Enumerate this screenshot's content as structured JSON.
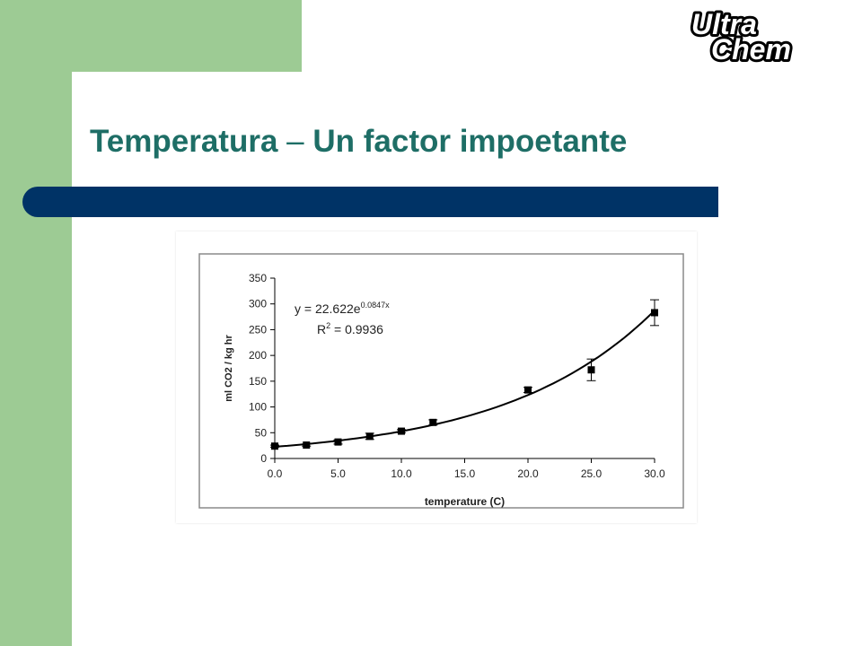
{
  "slide": {
    "title_main": "Temperatura ",
    "title_dash": "–",
    "title_rest": " Un factor impoetante",
    "accent_color": "#003366",
    "title_color": "#1e6e66",
    "sidebar_color": "#9dcb94"
  },
  "logo": {
    "text_line1": "Ultra",
    "text_line2": "Chem"
  },
  "chart_data": {
    "type": "scatter",
    "xlabel": "temperature (C)",
    "ylabel": "ml CO2 / kg hr",
    "xlim": [
      0,
      30
    ],
    "ylim": [
      0,
      350
    ],
    "x_ticks": [
      "0.0",
      "5.0",
      "10.0",
      "15.0",
      "20.0",
      "25.0",
      "30.0"
    ],
    "y_ticks": [
      "0",
      "50",
      "100",
      "150",
      "200",
      "250",
      "300",
      "350"
    ],
    "grid": false,
    "legend": "none",
    "annotation": {
      "eq_prefix": "y = 22.622e",
      "eq_exponent": "0.0847x",
      "r2_prefix": "R",
      "r2_sup": "2",
      "r2_suffix": " = 0.9936"
    },
    "points": [
      {
        "x": 0,
        "y": 24,
        "err": 2
      },
      {
        "x": 2.5,
        "y": 26,
        "err": 2
      },
      {
        "x": 5,
        "y": 32,
        "err": 4
      },
      {
        "x": 7.5,
        "y": 43,
        "err": 6
      },
      {
        "x": 10,
        "y": 53,
        "err": 3
      },
      {
        "x": 12.5,
        "y": 70,
        "err": 5
      },
      {
        "x": 20,
        "y": 133,
        "err": 5
      },
      {
        "x": 25,
        "y": 172,
        "err": 21
      },
      {
        "x": 30,
        "y": 283,
        "err": 25
      }
    ],
    "fit": {
      "a": 22.622,
      "b": 0.0847
    }
  }
}
